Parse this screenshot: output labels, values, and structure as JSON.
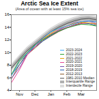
{
  "chart_data": {
    "type": "line",
    "title": "Arctic Sea Ice Extent",
    "subtitle": "(Area of ocean with at least 15% sea ice)",
    "x": [
      15,
      31,
      46,
      61,
      76,
      92,
      107,
      123,
      137,
      151,
      166,
      181
    ],
    "xlim": [
      15,
      181
    ],
    "xticks": [
      {
        "value": 31,
        "label": "Nov"
      },
      {
        "value": 61,
        "label": "Dec"
      },
      {
        "value": 92,
        "label": "Jan"
      },
      {
        "value": 123,
        "label": "Feb"
      },
      {
        "value": 151,
        "label": "Mar"
      }
    ],
    "ylim": [
      4,
      16
    ],
    "yticks": [
      4,
      6,
      8,
      10,
      12,
      14,
      16
    ],
    "grid": false,
    "legend": "bottom-right",
    "series": [
      {
        "name": "2023-2024",
        "color": "#3fa9f5",
        "values": [
          6.3,
          8.6,
          9.9,
          11.1,
          12.2,
          13.3,
          13.8,
          14.2,
          14.5,
          14.9,
          15.0,
          14.9
        ]
      },
      {
        "name": "2022-2023",
        "color": "#2ca02c",
        "values": [
          6.5,
          8.8,
          10.0,
          11.2,
          12.0,
          12.8,
          13.4,
          13.9,
          14.2,
          14.5,
          14.4,
          14.2
        ]
      },
      {
        "name": "2021-2022",
        "color": "#e69f00",
        "values": [
          6.4,
          8.5,
          9.9,
          11.1,
          12.1,
          13.0,
          13.8,
          14.2,
          14.6,
          14.8,
          14.7,
          14.5
        ]
      },
      {
        "name": "2020-2021",
        "color": "#e84393",
        "values": [
          5.2,
          7.3,
          9.6,
          10.9,
          12.0,
          12.9,
          13.5,
          14.0,
          14.3,
          14.6,
          14.7,
          14.5
        ]
      },
      {
        "name": "2019-2020",
        "color": "#7b4fb0",
        "values": [
          5.9,
          7.6,
          9.7,
          10.9,
          12.0,
          12.8,
          13.6,
          14.2,
          14.7,
          14.9,
          15.0,
          14.6
        ]
      },
      {
        "name": "2018-2019",
        "color": "#1f5fb4",
        "values": [
          6.4,
          8.1,
          9.9,
          10.9,
          11.8,
          12.7,
          13.4,
          13.9,
          14.3,
          14.5,
          14.6,
          14.3
        ]
      },
      {
        "name": "2012-2013",
        "color": "#8b5a2b",
        "values": [
          5.8,
          8.1,
          9.7,
          10.7,
          11.8,
          12.6,
          13.3,
          13.9,
          14.4,
          14.7,
          15.0,
          14.9
        ]
      },
      {
        "name": "1981-2010 Median",
        "color": "#555555",
        "line_style": "solid",
        "values": [
          7.5,
          9.0,
          10.3,
          11.3,
          12.3,
          13.3,
          14.0,
          14.6,
          15.0,
          15.3,
          15.4,
          15.2
        ]
      },
      {
        "name": "Interquartile Range",
        "type": "area",
        "color": "#b0b0b0",
        "lower": [
          7.2,
          8.7,
          10.0,
          11.0,
          12.0,
          13.0,
          13.7,
          14.3,
          14.7,
          15.0,
          15.1,
          14.9
        ],
        "upper": [
          7.8,
          9.3,
          10.6,
          11.6,
          12.6,
          13.6,
          14.3,
          14.9,
          15.3,
          15.6,
          15.7,
          15.5
        ]
      },
      {
        "name": "Interdecile Range",
        "type": "area",
        "color": "#dcdcdc",
        "lower": [
          6.9,
          8.4,
          9.7,
          10.7,
          11.7,
          12.7,
          13.4,
          14.0,
          14.4,
          14.7,
          14.8,
          14.6
        ],
        "upper": [
          8.1,
          9.6,
          10.9,
          11.9,
          12.9,
          13.9,
          14.6,
          15.2,
          15.6,
          15.9,
          16.0,
          15.8
        ]
      }
    ]
  }
}
